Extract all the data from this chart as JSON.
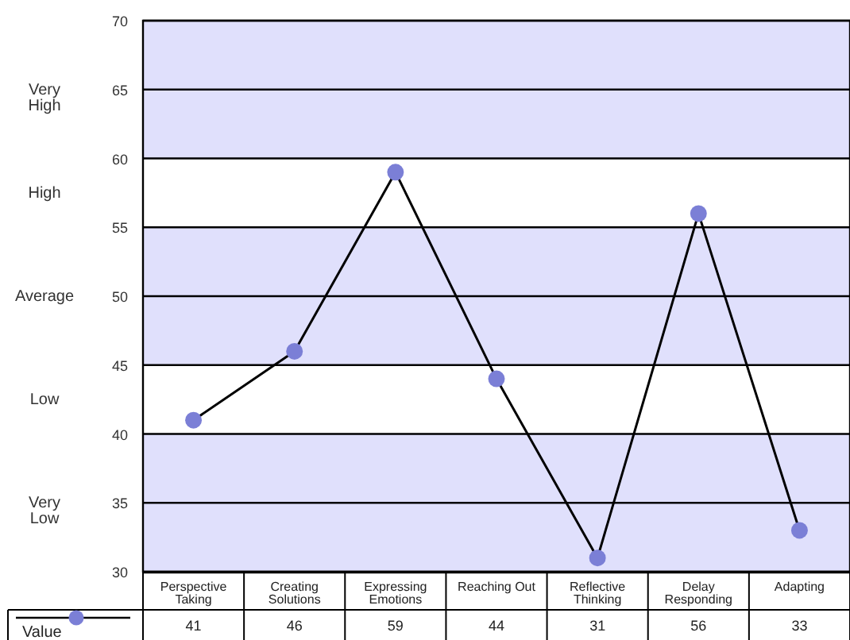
{
  "chart_data": {
    "type": "line",
    "categories": [
      "Perspective Taking",
      "Creating Solutions",
      "Expressing Emotions",
      "Reaching Out",
      "Reflective Thinking",
      "Delay Responding",
      "Adapting"
    ],
    "series": [
      {
        "name": "Value",
        "color": "#7b7fd6",
        "values": [
          41,
          46,
          59,
          44,
          31,
          56,
          33
        ]
      }
    ],
    "ylim": [
      30,
      70
    ],
    "yticks": [
      30,
      35,
      40,
      45,
      50,
      55,
      60,
      65,
      70
    ],
    "annotations": [
      "Very High",
      "High",
      "Average",
      "Low",
      "Very Low"
    ],
    "bands": [
      {
        "axis": "y",
        "from": 60,
        "to": 70,
        "color": "#e0e0fc"
      },
      {
        "axis": "y",
        "from": 55,
        "to": 60,
        "color": "#ffffff"
      },
      {
        "axis": "y",
        "from": 45,
        "to": 55,
        "color": "#e0e0fc"
      },
      {
        "axis": "y",
        "from": 40,
        "to": 45,
        "color": "#ffffff"
      },
      {
        "axis": "y",
        "from": 30,
        "to": 40,
        "color": "#e0e0fc"
      }
    ],
    "grid": true,
    "legend": "bottom left",
    "marker": "circle",
    "line_style": "solid",
    "data_labels": true
  }
}
